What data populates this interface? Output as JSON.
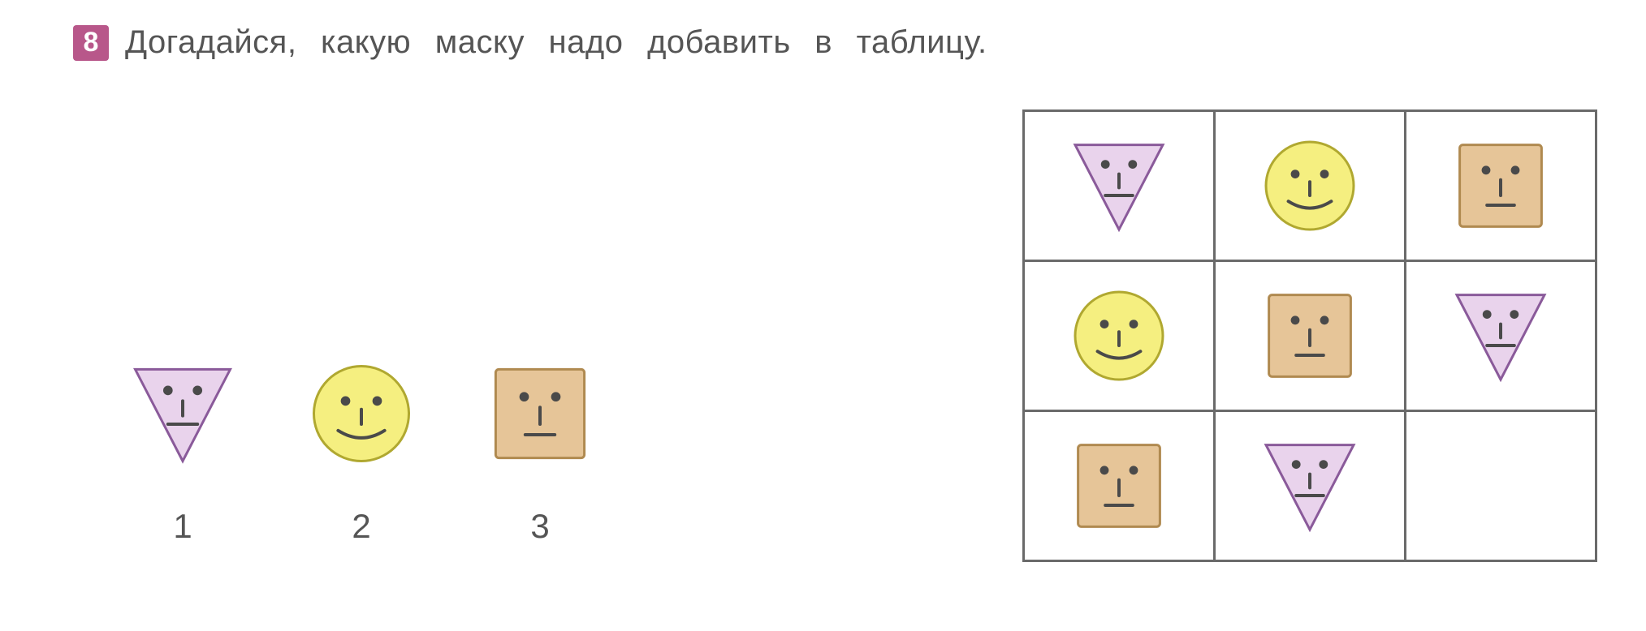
{
  "badge": "8",
  "prompt": "Догадайся, какую маску надо добавить в таблицу.",
  "options": [
    {
      "label": "1",
      "shape": "triangle"
    },
    {
      "label": "2",
      "shape": "circle"
    },
    {
      "label": "3",
      "shape": "square"
    }
  ],
  "grid": [
    [
      "triangle",
      "circle",
      "square"
    ],
    [
      "circle",
      "square",
      "triangle"
    ],
    [
      "square",
      "triangle",
      ""
    ]
  ],
  "shapes": {
    "triangle": {
      "fill": "#e9d3ec",
      "stroke": "#8a5a9a",
      "face": "neutral"
    },
    "circle": {
      "fill": "#f5ef80",
      "stroke": "#b0a830",
      "face": "smile"
    },
    "square": {
      "fill": "#e6c598",
      "stroke": "#b08a50",
      "face": "neutral"
    }
  },
  "face_dot_color": "#4a4a4a",
  "mask_size": 130,
  "grid_mask_size": 120
}
